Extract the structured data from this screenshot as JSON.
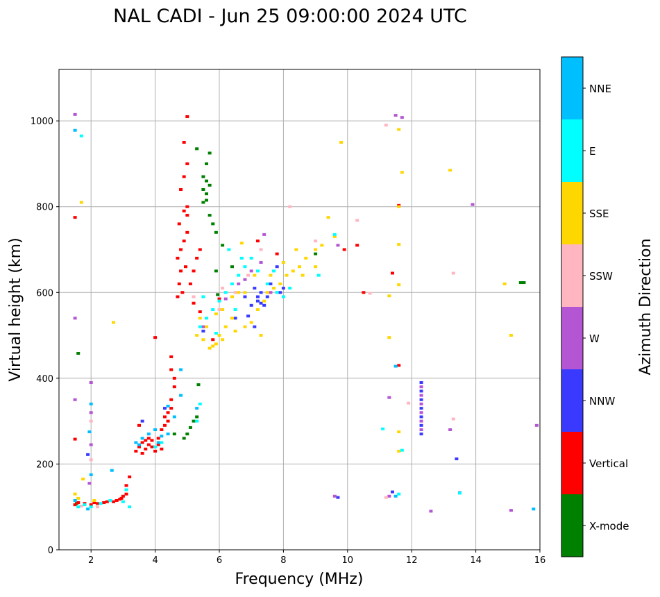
{
  "chart_data": {
    "type": "scatter",
    "title": "NAL CADI - Jun 25 09:00:00 2024 UTC",
    "xlabel": "Frequency (MHz)",
    "ylabel": "Virtual height (km)",
    "xlim": [
      1,
      16
    ],
    "ylim": [
      0,
      1120
    ],
    "xticks": [
      2,
      4,
      6,
      8,
      10,
      12,
      14,
      16
    ],
    "yticks": [
      0,
      200,
      400,
      600,
      800,
      1000
    ],
    "grid": true,
    "colorbar": {
      "label": "Azimuth Direction",
      "categories": [
        {
          "name": "X-mode",
          "color": "#008000"
        },
        {
          "name": "Vertical",
          "color": "#ff0000"
        },
        {
          "name": "NNW",
          "color": "#3a3aff"
        },
        {
          "name": "W",
          "color": "#b455d4"
        },
        {
          "name": "SSW",
          "color": "#ffb6c1"
        },
        {
          "name": "SSE",
          "color": "#ffd700"
        },
        {
          "name": "E",
          "color": "#00ffff"
        },
        {
          "name": "NNE",
          "color": "#00bfff"
        }
      ]
    },
    "series": [
      {
        "name": "X-mode",
        "points": [
          [
            1.6,
            458
          ],
          [
            1.55,
            108
          ],
          [
            4.9,
            260
          ],
          [
            5.0,
            270
          ],
          [
            5.1,
            285
          ],
          [
            5.2,
            300
          ],
          [
            5.3,
            310
          ],
          [
            5.35,
            385
          ],
          [
            4.6,
            270
          ],
          [
            5.5,
            810
          ],
          [
            5.6,
            830
          ],
          [
            5.7,
            850
          ],
          [
            5.5,
            870
          ],
          [
            5.7,
            780
          ],
          [
            5.8,
            760
          ],
          [
            5.9,
            740
          ],
          [
            5.6,
            900
          ],
          [
            5.3,
            935
          ],
          [
            5.7,
            925
          ],
          [
            5.9,
            650
          ],
          [
            6.1,
            710
          ],
          [
            5.95,
            595
          ],
          [
            5.6,
            815
          ],
          [
            5.5,
            840
          ],
          [
            5.6,
            860
          ],
          [
            15.4,
            623
          ],
          [
            15.5,
            623
          ],
          [
            9.0,
            690
          ],
          [
            6.4,
            660
          ]
        ]
      },
      {
        "name": "Vertical",
        "points": [
          [
            1.5,
            105
          ],
          [
            1.6,
            110
          ],
          [
            1.8,
            108
          ],
          [
            2.0,
            105
          ],
          [
            2.1,
            110
          ],
          [
            2.2,
            108
          ],
          [
            2.4,
            110
          ],
          [
            2.5,
            112
          ],
          [
            2.7,
            112
          ],
          [
            2.8,
            115
          ],
          [
            2.9,
            118
          ],
          [
            3.0,
            125
          ],
          [
            3.1,
            130
          ],
          [
            3.1,
            150
          ],
          [
            3.2,
            170
          ],
          [
            1.5,
            258
          ],
          [
            1.5,
            775
          ],
          [
            2.95,
            120
          ],
          [
            3.4,
            230
          ],
          [
            3.5,
            240
          ],
          [
            3.6,
            250
          ],
          [
            3.7,
            235
          ],
          [
            3.8,
            245
          ],
          [
            3.9,
            255
          ],
          [
            4.0,
            230
          ],
          [
            4.1,
            260
          ],
          [
            4.2,
            280
          ],
          [
            4.3,
            290
          ],
          [
            4.4,
            300
          ],
          [
            4.5,
            330
          ],
          [
            4.5,
            350
          ],
          [
            4.4,
            320
          ],
          [
            4.6,
            380
          ],
          [
            4.5,
            420
          ],
          [
            4.5,
            450
          ],
          [
            4.6,
            400
          ],
          [
            3.5,
            290
          ],
          [
            3.8,
            260
          ],
          [
            3.9,
            240
          ],
          [
            4.1,
            245
          ],
          [
            4.3,
            310
          ],
          [
            4.0,
            495
          ],
          [
            3.6,
            225
          ],
          [
            3.7,
            255
          ],
          [
            4.2,
            235
          ],
          [
            4.7,
            590
          ],
          [
            4.75,
            620
          ],
          [
            4.8,
            650
          ],
          [
            4.7,
            680
          ],
          [
            4.8,
            700
          ],
          [
            4.9,
            720
          ],
          [
            5.0,
            740
          ],
          [
            4.75,
            760
          ],
          [
            4.9,
            790
          ],
          [
            5.0,
            800
          ],
          [
            4.8,
            840
          ],
          [
            4.9,
            870
          ],
          [
            5.0,
            900
          ],
          [
            4.9,
            950
          ],
          [
            5.0,
            1010
          ],
          [
            5.1,
            620
          ],
          [
            5.2,
            650
          ],
          [
            5.3,
            680
          ],
          [
            5.4,
            700
          ],
          [
            5.0,
            780
          ],
          [
            5.2,
            575
          ],
          [
            5.4,
            555
          ],
          [
            4.85,
            600
          ],
          [
            4.95,
            660
          ],
          [
            5.8,
            490
          ],
          [
            6.0,
            585
          ],
          [
            7.2,
            720
          ],
          [
            7.8,
            690
          ],
          [
            10.3,
            710
          ],
          [
            9.9,
            700
          ],
          [
            10.5,
            600
          ],
          [
            11.4,
            645
          ],
          [
            11.6,
            803
          ],
          [
            11.6,
            430
          ]
        ]
      },
      {
        "name": "NNW",
        "points": [
          [
            1.9,
            222
          ],
          [
            4.3,
            330
          ],
          [
            3.6,
            300
          ],
          [
            6.8,
            590
          ],
          [
            7.0,
            570
          ],
          [
            7.2,
            580
          ],
          [
            7.3,
            600
          ],
          [
            7.4,
            570
          ],
          [
            7.1,
            610
          ],
          [
            7.6,
            620
          ],
          [
            7.8,
            660
          ],
          [
            6.9,
            545
          ],
          [
            7.5,
            590
          ],
          [
            7.9,
            600
          ],
          [
            6.5,
            540
          ],
          [
            5.5,
            510
          ],
          [
            7.1,
            520
          ],
          [
            8.0,
            610
          ],
          [
            7.2,
            590
          ],
          [
            7.3,
            575
          ],
          [
            12.3,
            270
          ],
          [
            12.3,
            290
          ],
          [
            12.3,
            310
          ],
          [
            12.3,
            330
          ],
          [
            12.3,
            350
          ],
          [
            12.3,
            370
          ],
          [
            12.3,
            390
          ],
          [
            13.4,
            212
          ],
          [
            13.5,
            133
          ],
          [
            11.4,
            135
          ],
          [
            9.7,
            122
          ]
        ]
      },
      {
        "name": "W",
        "points": [
          [
            1.5,
            1015
          ],
          [
            1.5,
            350
          ],
          [
            1.5,
            540
          ],
          [
            2.0,
            390
          ],
          [
            2.0,
            320
          ],
          [
            2.0,
            245
          ],
          [
            1.95,
            155
          ],
          [
            6.6,
            620
          ],
          [
            6.8,
            630
          ],
          [
            7.0,
            650
          ],
          [
            7.3,
            670
          ],
          [
            7.6,
            600
          ],
          [
            6.2,
            585
          ],
          [
            5.5,
            520
          ],
          [
            9.7,
            710
          ],
          [
            7.4,
            735
          ],
          [
            12.3,
            280
          ],
          [
            12.3,
            300
          ],
          [
            12.3,
            320
          ],
          [
            12.3,
            340
          ],
          [
            12.3,
            360
          ],
          [
            12.3,
            380
          ],
          [
            13.2,
            280
          ],
          [
            11.3,
            355
          ],
          [
            13.9,
            805
          ],
          [
            15.9,
            290
          ],
          [
            15.1,
            92
          ],
          [
            12.6,
            90
          ],
          [
            11.3,
            125
          ],
          [
            9.6,
            125
          ],
          [
            11.7,
            1008
          ],
          [
            11.5,
            1013
          ]
        ]
      },
      {
        "name": "SSW",
        "points": [
          [
            2.0,
            300
          ],
          [
            2.0,
            210
          ],
          [
            1.7,
            102
          ],
          [
            2.2,
            100
          ],
          [
            5.2,
            590
          ],
          [
            6.0,
            560
          ],
          [
            6.5,
            600
          ],
          [
            6.9,
            640
          ],
          [
            7.3,
            700
          ],
          [
            8.2,
            800
          ],
          [
            6.1,
            610
          ],
          [
            9.0,
            720
          ],
          [
            11.2,
            990
          ],
          [
            13.3,
            645
          ],
          [
            11.9,
            342
          ],
          [
            13.3,
            305
          ],
          [
            10.3,
            768
          ],
          [
            11.2,
            122
          ],
          [
            10.7,
            598
          ]
        ]
      },
      {
        "name": "SSE",
        "points": [
          [
            1.5,
            130
          ],
          [
            1.6,
            120
          ],
          [
            2.7,
            530
          ],
          [
            1.7,
            810
          ],
          [
            1.75,
            165
          ],
          [
            2.1,
            115
          ],
          [
            5.3,
            500
          ],
          [
            5.5,
            490
          ],
          [
            5.7,
            470
          ],
          [
            5.9,
            480
          ],
          [
            6.0,
            500
          ],
          [
            6.2,
            520
          ],
          [
            6.4,
            540
          ],
          [
            6.5,
            510
          ],
          [
            6.8,
            520
          ],
          [
            7.0,
            530
          ],
          [
            7.2,
            560
          ],
          [
            7.4,
            580
          ],
          [
            7.5,
            600
          ],
          [
            7.7,
            610
          ],
          [
            7.9,
            620
          ],
          [
            8.1,
            640
          ],
          [
            8.3,
            650
          ],
          [
            8.5,
            660
          ],
          [
            8.7,
            680
          ],
          [
            9.0,
            700
          ],
          [
            9.2,
            710
          ],
          [
            9.6,
            730
          ],
          [
            6.1,
            560
          ],
          [
            6.4,
            590
          ],
          [
            6.8,
            600
          ],
          [
            7.1,
            640
          ],
          [
            7.6,
            640
          ],
          [
            8.0,
            670
          ],
          [
            5.6,
            520
          ],
          [
            6.6,
            600
          ],
          [
            5.9,
            550
          ],
          [
            7.3,
            500
          ],
          [
            5.4,
            540
          ],
          [
            9.0,
            660
          ],
          [
            9.4,
            775
          ],
          [
            9.8,
            950
          ],
          [
            8.4,
            700
          ],
          [
            6.7,
            715
          ],
          [
            5.8,
            475
          ],
          [
            6.1,
            490
          ],
          [
            8.6,
            640
          ],
          [
            11.6,
            980
          ],
          [
            11.7,
            880
          ],
          [
            13.2,
            885
          ],
          [
            11.6,
            800
          ],
          [
            11.6,
            712
          ],
          [
            11.6,
            618
          ],
          [
            15.1,
            500
          ],
          [
            14.9,
            620
          ],
          [
            11.3,
            495
          ],
          [
            11.6,
            275
          ],
          [
            11.6,
            230
          ],
          [
            11.3,
            592
          ]
        ]
      },
      {
        "name": "E",
        "points": [
          [
            1.6,
            100
          ],
          [
            1.8,
            105
          ],
          [
            2.0,
            100
          ],
          [
            2.3,
            108
          ],
          [
            2.6,
            115
          ],
          [
            3.0,
            112
          ],
          [
            3.2,
            100
          ],
          [
            3.1,
            140
          ],
          [
            1.7,
            965
          ],
          [
            4.0,
            240
          ],
          [
            4.2,
            250
          ],
          [
            5.4,
            340
          ],
          [
            5.3,
            300
          ],
          [
            5.4,
            520
          ],
          [
            5.6,
            540
          ],
          [
            5.8,
            560
          ],
          [
            6.0,
            580
          ],
          [
            6.2,
            600
          ],
          [
            6.4,
            620
          ],
          [
            6.6,
            640
          ],
          [
            6.8,
            660
          ],
          [
            7.0,
            680
          ],
          [
            7.2,
            650
          ],
          [
            7.5,
            620
          ],
          [
            7.8,
            600
          ],
          [
            8.0,
            590
          ],
          [
            8.2,
            610
          ],
          [
            5.5,
            590
          ],
          [
            6.3,
            700
          ],
          [
            6.7,
            680
          ],
          [
            5.9,
            505
          ],
          [
            6.5,
            560
          ],
          [
            7.7,
            650
          ],
          [
            9.6,
            735
          ],
          [
            9.1,
            640
          ],
          [
            11.6,
            130
          ],
          [
            11.1,
            282
          ],
          [
            11.7,
            232
          ],
          [
            13.5,
            132
          ]
        ]
      },
      {
        "name": "NNE",
        "points": [
          [
            1.5,
            115
          ],
          [
            1.9,
            95
          ],
          [
            2.0,
            340
          ],
          [
            1.95,
            275
          ],
          [
            2.65,
            185
          ],
          [
            2.0,
            175
          ],
          [
            1.5,
            978
          ],
          [
            3.4,
            250
          ],
          [
            3.6,
            260
          ],
          [
            3.8,
            270
          ],
          [
            4.0,
            280
          ],
          [
            4.2,
            265
          ],
          [
            4.4,
            270
          ],
          [
            4.6,
            310
          ],
          [
            4.8,
            360
          ],
          [
            4.8,
            420
          ],
          [
            5.3,
            330
          ],
          [
            4.4,
            335
          ],
          [
            3.5,
            245
          ],
          [
            4.1,
            250
          ],
          [
            11.5,
            428
          ],
          [
            15.8,
            95
          ],
          [
            11.5,
            125
          ]
        ]
      }
    ]
  }
}
